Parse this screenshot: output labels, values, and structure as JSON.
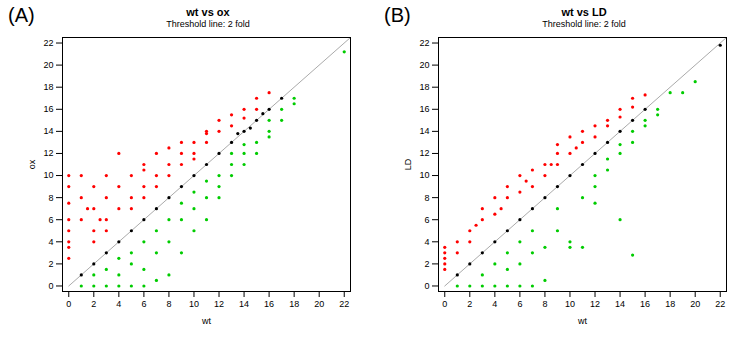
{
  "chart_data": [
    {
      "type": "scatter",
      "title": "wt vs ox",
      "subtitle": "Threshold line: 2 fold",
      "annotations": [
        "(A)"
      ],
      "xlabel": "wt",
      "ylabel": "ox",
      "xlim": [
        -0.5,
        22.5
      ],
      "ylim": [
        -0.5,
        22.5
      ],
      "xticks": [
        0,
        2,
        4,
        6,
        8,
        10,
        12,
        14,
        16,
        18,
        20,
        22
      ],
      "yticks": [
        0,
        2,
        4,
        6,
        8,
        10,
        12,
        14,
        16,
        18,
        20,
        22
      ],
      "series": [
        {
          "type": "line",
          "color": "#aaaaaa",
          "x": [
            0,
            22.5
          ],
          "values": [
            0,
            22.5
          ]
        },
        {
          "type": "scatter",
          "color": "#ff0000",
          "x": [
            0,
            0,
            0,
            0,
            0,
            0,
            0,
            0,
            1,
            1,
            1,
            2,
            2,
            2,
            2,
            3,
            3,
            3,
            4,
            4,
            4,
            5,
            5,
            5,
            6,
            6,
            6,
            7,
            7,
            7,
            8,
            8,
            8,
            9,
            9,
            10,
            10,
            10,
            11,
            11,
            12,
            12,
            13,
            13,
            14,
            14,
            15,
            15,
            16,
            3,
            1.5,
            2.5,
            6,
            9,
            11
          ],
          "values": [
            10,
            9,
            7.5,
            6,
            5,
            4,
            3.5,
            2.5,
            10,
            8,
            6,
            9,
            7,
            5,
            4,
            8,
            6,
            5,
            12,
            9,
            7,
            10,
            8,
            7,
            11,
            9,
            8,
            12,
            10,
            9,
            12.5,
            11,
            10,
            12,
            11,
            13,
            12,
            11.5,
            14,
            13,
            15,
            14,
            15.5,
            14.5,
            16,
            15.2,
            17,
            16,
            17.5,
            10,
            7,
            6,
            10.5,
            13,
            13.8
          ]
        },
        {
          "type": "scatter",
          "color": "#00cc00",
          "x": [
            1,
            2,
            3,
            4,
            5,
            6,
            7,
            2,
            4,
            6,
            8,
            3,
            5,
            7,
            8,
            9,
            10,
            9,
            10,
            11,
            11,
            12,
            12,
            13,
            13,
            14,
            14,
            15,
            15,
            16,
            16,
            17,
            18,
            18,
            22,
            6,
            7,
            8,
            5,
            4,
            12,
            10,
            14,
            16,
            13,
            17,
            9,
            11
          ],
          "values": [
            0,
            0,
            0,
            0,
            0,
            0,
            0.5,
            1,
            1,
            1.5,
            1,
            1.5,
            2,
            3,
            4,
            3,
            5,
            6,
            7,
            6,
            8,
            8,
            9,
            10,
            11,
            11,
            12,
            12,
            13,
            14,
            13.5,
            15,
            17,
            16.5,
            21.2,
            4,
            5,
            6,
            3,
            2.5,
            10,
            8.5,
            12.8,
            15,
            12,
            16,
            7.5,
            9.5
          ]
        },
        {
          "type": "scatter",
          "color": "#000000",
          "x": [
            1,
            2,
            3,
            4,
            5,
            6,
            7,
            8,
            9,
            10,
            11,
            12,
            13,
            14,
            15,
            16,
            17,
            13.5,
            14.5,
            15.5
          ],
          "values": [
            1,
            2,
            3,
            4,
            5,
            6,
            7,
            8,
            9,
            10,
            11,
            12,
            13,
            14,
            15,
            16,
            17,
            13.8,
            14.3,
            15.6
          ]
        }
      ]
    },
    {
      "type": "scatter",
      "title": "wt vs LD",
      "subtitle": "Threshold line: 2 fold",
      "annotations": [
        "(B)"
      ],
      "xlabel": "wt",
      "ylabel": "LD",
      "xlim": [
        -0.5,
        22.5
      ],
      "ylim": [
        -0.5,
        22.5
      ],
      "xticks": [
        0,
        2,
        4,
        6,
        8,
        10,
        12,
        14,
        16,
        18,
        20,
        22
      ],
      "yticks": [
        0,
        2,
        4,
        6,
        8,
        10,
        12,
        14,
        16,
        18,
        20,
        22
      ],
      "series": [
        {
          "type": "line",
          "color": "#aaaaaa",
          "x": [
            0,
            22.5
          ],
          "values": [
            0,
            22.5
          ]
        },
        {
          "type": "scatter",
          "color": "#ff0000",
          "x": [
            0,
            0,
            0,
            0,
            0,
            1,
            1,
            2,
            2,
            3,
            3,
            4,
            4,
            5,
            5,
            6,
            6,
            7,
            7,
            8,
            8,
            9,
            9,
            10,
            10,
            11,
            11,
            12,
            12,
            13,
            13,
            14,
            14,
            15,
            15,
            16,
            2.5,
            4.5,
            6.5,
            8.5,
            10.5,
            9
          ],
          "values": [
            3.5,
            3,
            2.5,
            2,
            1.5,
            4,
            3,
            5,
            4,
            7,
            6,
            8,
            6.5,
            9,
            8,
            10,
            8.5,
            10.5,
            9,
            11,
            10,
            12,
            11,
            13.5,
            12,
            14,
            13,
            14.5,
            13.5,
            15,
            14.5,
            16,
            15.3,
            17,
            16.2,
            17.3,
            5.5,
            7,
            9.5,
            11,
            12.5,
            12.8
          ]
        },
        {
          "type": "scatter",
          "color": "#00cc00",
          "x": [
            1,
            2,
            3,
            4,
            5,
            6,
            7,
            8,
            3,
            5,
            6,
            7,
            8,
            9,
            10,
            10,
            11,
            12,
            12,
            13,
            13,
            14,
            14,
            15,
            15,
            16,
            16,
            17,
            17,
            18,
            19,
            20,
            11,
            15,
            14,
            12,
            9,
            7,
            6,
            5,
            4
          ],
          "values": [
            0,
            0,
            0,
            0,
            0,
            0,
            0,
            0.5,
            1,
            1.5,
            2,
            3,
            3.5,
            5,
            4,
            3.5,
            8,
            9,
            10,
            10.5,
            11.5,
            12,
            12.8,
            13,
            14,
            14.5,
            15,
            15.5,
            16,
            17.5,
            17.5,
            18.5,
            3.5,
            2.8,
            6,
            7.5,
            7,
            5,
            4,
            3,
            2
          ]
        },
        {
          "type": "scatter",
          "color": "#000000",
          "x": [
            1,
            2,
            3,
            4,
            5,
            6,
            7,
            8,
            9,
            10,
            11,
            12,
            13,
            14,
            15,
            16,
            22
          ],
          "values": [
            1,
            2,
            3,
            4,
            5,
            6,
            7,
            8,
            9,
            10,
            11,
            12,
            13,
            14,
            15,
            16,
            21.8
          ]
        }
      ]
    }
  ]
}
